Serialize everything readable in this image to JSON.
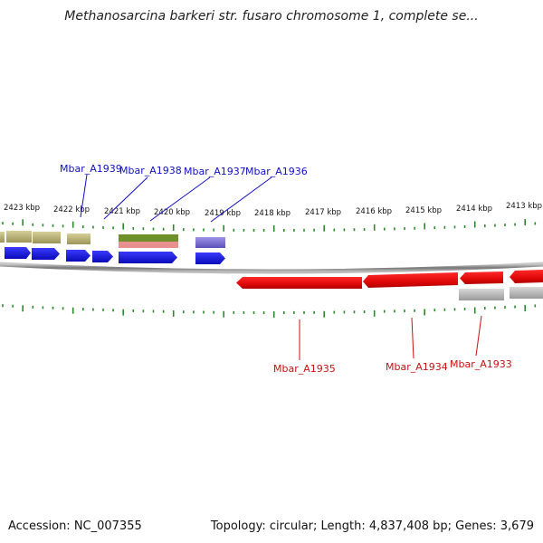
{
  "title": "Methanosarcina barkeri str. fusaro chromosome 1, complete se...",
  "footer": {
    "accession": "Accession: NC_007355",
    "summary": "Topology: circular; Length: 4,837,408 bp; Genes: 3,679"
  },
  "colors": {
    "forward_gene": "#1010e0",
    "reverse_gene": "#e01010",
    "olive_feature": "#b5ad6b",
    "green_feature": "#6f8f2a",
    "pink_feature": "#e89090",
    "purple_feature": "#7a6fd0",
    "gray_feature": "#b0b0b0",
    "ticks": "#2a8a2a",
    "backbone": "#888888"
  },
  "axis": {
    "ticks": [
      {
        "label": "2423 kbp"
      },
      {
        "label": "2422 kbp"
      },
      {
        "label": "2421 kbp"
      },
      {
        "label": "2420 kbp"
      },
      {
        "label": "2419 kbp"
      },
      {
        "label": "2418 kbp"
      },
      {
        "label": "2417 kbp"
      },
      {
        "label": "2416 kbp"
      },
      {
        "label": "2415 kbp"
      },
      {
        "label": "2414 kbp"
      },
      {
        "label": "2413 kbp"
      }
    ]
  },
  "genes_top": [
    "Mbar_A1939",
    "Mbar_A1938",
    "Mbar_A1937",
    "Mbar_A1936"
  ],
  "genes_bottom": [
    "Mbar_A1935",
    "Mbar_A1934",
    "Mbar_A1933"
  ]
}
